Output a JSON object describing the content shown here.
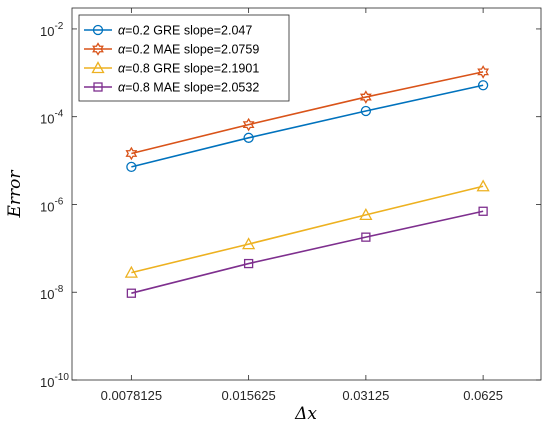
{
  "chart_data": {
    "type": "line",
    "xscale": "log2",
    "yscale": "log10",
    "x": [
      0.0078125,
      0.015625,
      0.03125,
      0.0625
    ],
    "x_tick_labels": [
      "0.0078125",
      "0.015625",
      "0.03125",
      "0.0625"
    ],
    "xlim": [
      0.0055,
      0.088
    ],
    "ylim": [
      1e-10,
      0.03
    ],
    "y_ticks": [
      {
        "value": 1e-10,
        "base": "10",
        "exp": "-10"
      },
      {
        "value": 1e-08,
        "base": "10",
        "exp": "-8"
      },
      {
        "value": 1e-06,
        "base": "10",
        "exp": "-6"
      },
      {
        "value": 0.0001,
        "base": "10",
        "exp": "-4"
      },
      {
        "value": 0.01,
        "base": "10",
        "exp": "-2"
      }
    ],
    "xlabel": "Δx",
    "ylabel": "Error",
    "grid": false,
    "legend_position": "top-left",
    "series": [
      {
        "name": "α=0.2 GRE  slope=2.047",
        "alpha": "α",
        "rest": "=0.2 GRE  slope=2.047",
        "color": "#0072BD",
        "marker": "circle",
        "values": [
          7.2e-06,
          3.3e-05,
          0.000135,
          0.00052
        ]
      },
      {
        "name": "α=0.2 MAE  slope=2.0759",
        "alpha": "α",
        "rest": "=0.2 MAE  slope=2.0759",
        "color": "#D95319",
        "marker": "hexagram",
        "values": [
          1.45e-05,
          6.6e-05,
          0.00028,
          0.00105
        ]
      },
      {
        "name": "α=0.8 GRE  slope=2.1901",
        "alpha": "α",
        "rest": "=0.8 GRE  slope=2.1901",
        "color": "#EDB120",
        "marker": "triangle",
        "values": [
          2.8e-08,
          1.25e-07,
          5.8e-07,
          2.6e-06
        ]
      },
      {
        "name": "α=0.8 MAE  slope=2.0532",
        "alpha": "α",
        "rest": "=0.8 MAE  slope=2.0532",
        "color": "#7E2F8E",
        "marker": "square",
        "values": [
          9.5e-09,
          4.5e-08,
          1.8e-07,
          7e-07
        ]
      }
    ]
  }
}
